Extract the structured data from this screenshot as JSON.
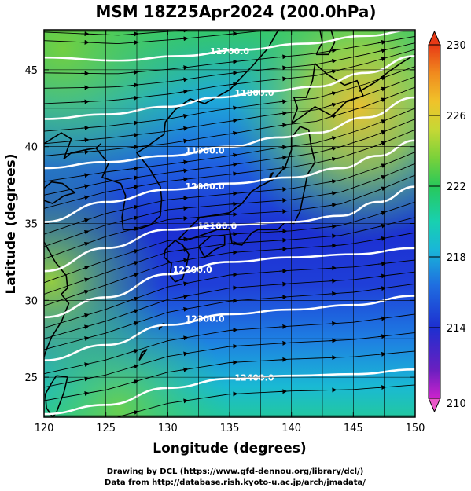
{
  "title": "MSM 18Z25Apr2024 (200.0hPa)",
  "x_axis": {
    "label": "Longitude (degrees)",
    "range": [
      120,
      150
    ],
    "ticks": [
      "120",
      "125",
      "130",
      "135",
      "140",
      "145",
      "150"
    ],
    "tick_values": [
      120,
      125,
      130,
      135,
      140,
      145,
      150
    ]
  },
  "y_axis": {
    "label": "Latitude  (degrees)",
    "range": [
      22.4,
      47.6
    ],
    "ticks": [
      "25",
      "30",
      "35",
      "40",
      "45"
    ],
    "tick_values": [
      25,
      30,
      35,
      40,
      45
    ]
  },
  "colorbar": {
    "min": 210,
    "max": 230,
    "tick_labels": [
      "230",
      "226",
      "222",
      "218",
      "214",
      "210"
    ],
    "tick_values": [
      230,
      226,
      222,
      218,
      214,
      210
    ],
    "colors": [
      "#cc22cc",
      "#6a1fc0",
      "#1d2fd0",
      "#1f6ee0",
      "#19b6d8",
      "#18d0b0",
      "#28c85a",
      "#7ad13a",
      "#c6d835",
      "#f0c22a",
      "#f08a1e",
      "#e83a16"
    ]
  },
  "contours": [
    {
      "label": "11700.0",
      "lats_at": [
        [
          120,
          45.8
        ],
        [
          126,
          45.6
        ],
        [
          131,
          45.9
        ],
        [
          136,
          46.3
        ],
        [
          141,
          46.7
        ],
        [
          146,
          47.2
        ],
        [
          150,
          47.6
        ]
      ]
    },
    {
      "label": "11800.0",
      "lats_at": [
        [
          120,
          41.8
        ],
        [
          125,
          42.1
        ],
        [
          130,
          42.6
        ],
        [
          134,
          43.2
        ],
        [
          138,
          43.6
        ],
        [
          142,
          43.9
        ],
        [
          146,
          44.8
        ],
        [
          150,
          45.9
        ]
      ]
    },
    {
      "label": "11900.0",
      "lats_at": [
        [
          120,
          38.6
        ],
        [
          125,
          39.0
        ],
        [
          130,
          39.4
        ],
        [
          135,
          40.0
        ],
        [
          139,
          40.6
        ],
        [
          142,
          40.9
        ],
        [
          146,
          41.9
        ],
        [
          150,
          43.2
        ]
      ]
    },
    {
      "label": "12000.0",
      "lats_at": [
        [
          120,
          35.1
        ],
        [
          125,
          36.4
        ],
        [
          130,
          37.2
        ],
        [
          135,
          37.6
        ],
        [
          140,
          38.0
        ],
        [
          144,
          38.6
        ],
        [
          147,
          39.4
        ],
        [
          150,
          40.4
        ]
      ]
    },
    {
      "label": "12100.0",
      "lats_at": [
        [
          120,
          31.9
        ],
        [
          125,
          33.4
        ],
        [
          130,
          34.6
        ],
        [
          135,
          34.9
        ],
        [
          140,
          35.1
        ],
        [
          144,
          35.5
        ],
        [
          147,
          36.4
        ],
        [
          150,
          37.4
        ]
      ]
    },
    {
      "label": "12200.0",
      "lats_at": [
        [
          120,
          28.9
        ],
        [
          125,
          30.2
        ],
        [
          130,
          31.7
        ],
        [
          135,
          32.5
        ],
        [
          140,
          32.8
        ],
        [
          145,
          33.0
        ],
        [
          150,
          33.4
        ]
      ]
    },
    {
      "label": "12300.0",
      "lats_at": [
        [
          120,
          26.1
        ],
        [
          125,
          27.1
        ],
        [
          130,
          28.4
        ],
        [
          135,
          29.1
        ],
        [
          140,
          29.4
        ],
        [
          145,
          29.7
        ],
        [
          150,
          30.3
        ]
      ]
    },
    {
      "label": "12400.0",
      "lats_at": [
        [
          120,
          22.6
        ],
        [
          125,
          23.2
        ],
        [
          130,
          24.3
        ],
        [
          135,
          24.9
        ],
        [
          140,
          25.1
        ],
        [
          145,
          25.2
        ],
        [
          150,
          25.5
        ]
      ]
    }
  ],
  "credits": {
    "line1": "Drawing by DCL (https://www.gfd-dennou.org/library/dcl/)",
    "line2": "Data from http://database.rish.kyoto-u.ac.jp/arch/jmadata/"
  }
}
